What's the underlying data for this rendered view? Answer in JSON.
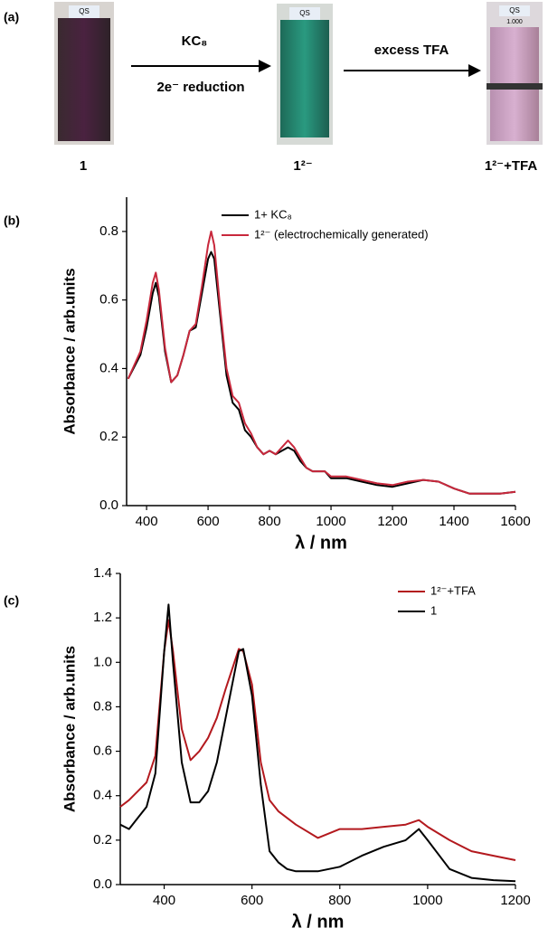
{
  "panel_a": {
    "label": "(a)",
    "cuvette_mark": "QS",
    "cuvette_volume": "1.000",
    "step1_top": "KC₈",
    "step1_bottom": "2e⁻ reduction",
    "step2_top": "excess TFA",
    "compound_1": "1",
    "compound_2": "1²⁻",
    "compound_3": "1²⁻+TFA"
  },
  "chart_data": [
    {
      "type": "line",
      "panel_label": "(b)",
      "xlabel": "λ / nm",
      "ylabel": "Absorbance / arb.units",
      "xlim": [
        335,
        1600
      ],
      "ylim": [
        0,
        0.9
      ],
      "xticks": [
        400,
        600,
        800,
        1000,
        1200,
        1400,
        1600
      ],
      "yticks": [
        {
          "value": 0,
          "label": "0.0"
        },
        0.2,
        0.4,
        0.6,
        0.8
      ],
      "legend": "upper center",
      "x": [
        340,
        380,
        400,
        420,
        430,
        440,
        460,
        480,
        500,
        520,
        540,
        560,
        580,
        600,
        610,
        620,
        640,
        660,
        680,
        700,
        720,
        740,
        760,
        780,
        800,
        820,
        840,
        860,
        880,
        900,
        920,
        940,
        960,
        980,
        1000,
        1050,
        1100,
        1150,
        1200,
        1250,
        1300,
        1350,
        1400,
        1450,
        1500,
        1550,
        1600
      ],
      "series": [
        {
          "name": "1+ KC₈",
          "color": "#000000",
          "values": [
            0.37,
            0.44,
            0.52,
            0.62,
            0.65,
            0.61,
            0.45,
            0.36,
            0.38,
            0.44,
            0.51,
            0.52,
            0.62,
            0.72,
            0.74,
            0.72,
            0.55,
            0.38,
            0.3,
            0.28,
            0.22,
            0.2,
            0.17,
            0.15,
            0.16,
            0.15,
            0.16,
            0.17,
            0.16,
            0.13,
            0.11,
            0.1,
            0.1,
            0.1,
            0.08,
            0.08,
            0.07,
            0.06,
            0.055,
            0.065,
            0.075,
            0.07,
            0.05,
            0.035,
            0.035,
            0.035,
            0.04
          ]
        },
        {
          "name": "1²⁻ (electrochemically generated)",
          "color": "#c8283c",
          "values": [
            0.37,
            0.45,
            0.54,
            0.65,
            0.68,
            0.63,
            0.46,
            0.36,
            0.38,
            0.44,
            0.51,
            0.53,
            0.64,
            0.76,
            0.8,
            0.76,
            0.57,
            0.4,
            0.32,
            0.3,
            0.24,
            0.21,
            0.17,
            0.15,
            0.16,
            0.15,
            0.17,
            0.19,
            0.17,
            0.14,
            0.11,
            0.1,
            0.1,
            0.1,
            0.085,
            0.085,
            0.075,
            0.065,
            0.06,
            0.07,
            0.075,
            0.07,
            0.05,
            0.035,
            0.035,
            0.035,
            0.04
          ]
        }
      ]
    },
    {
      "type": "line",
      "panel_label": "(c)",
      "xlabel": "λ / nm",
      "ylabel": "Absorbance / arb.units",
      "xlim": [
        300,
        1200
      ],
      "ylim": [
        0,
        1.4
      ],
      "xticks": [
        400,
        600,
        800,
        1000,
        1200
      ],
      "yticks": [
        {
          "value": 0,
          "label": "0.0"
        },
        0.2,
        0.4,
        0.6,
        0.8,
        {
          "value": 1,
          "label": "1.0"
        },
        1.2,
        1.4
      ],
      "legend": "upper right",
      "x": [
        300,
        320,
        340,
        360,
        380,
        400,
        410,
        420,
        440,
        460,
        480,
        500,
        520,
        540,
        560,
        570,
        580,
        600,
        620,
        640,
        660,
        680,
        700,
        750,
        800,
        850,
        900,
        950,
        980,
        1000,
        1050,
        1100,
        1150,
        1200
      ],
      "series": [
        {
          "name": "1²⁻+TFA",
          "color": "#b3191e",
          "values": [
            0.35,
            0.38,
            0.42,
            0.46,
            0.58,
            1.05,
            1.19,
            1.05,
            0.7,
            0.56,
            0.6,
            0.66,
            0.75,
            0.88,
            1.0,
            1.06,
            1.05,
            0.9,
            0.55,
            0.38,
            0.33,
            0.3,
            0.27,
            0.21,
            0.25,
            0.25,
            0.26,
            0.27,
            0.29,
            0.26,
            0.2,
            0.15,
            0.13,
            0.11
          ]
        },
        {
          "name": "1",
          "color": "#000000",
          "values": [
            0.27,
            0.25,
            0.3,
            0.35,
            0.5,
            1.05,
            1.26,
            1.0,
            0.55,
            0.37,
            0.37,
            0.42,
            0.55,
            0.75,
            0.95,
            1.05,
            1.06,
            0.85,
            0.45,
            0.15,
            0.1,
            0.07,
            0.06,
            0.06,
            0.08,
            0.13,
            0.17,
            0.2,
            0.25,
            0.2,
            0.07,
            0.03,
            0.02,
            0.015
          ]
        }
      ]
    }
  ]
}
